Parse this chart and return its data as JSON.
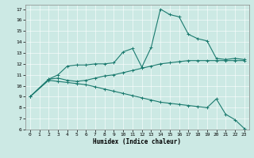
{
  "xlabel": "Humidex (Indice chaleur)",
  "bg_color": "#cce9e4",
  "line_color": "#1a7a6e",
  "xlim": [
    -0.5,
    23.5
  ],
  "ylim": [
    6,
    17.4
  ],
  "yticks": [
    6,
    7,
    8,
    9,
    10,
    11,
    12,
    13,
    14,
    15,
    16,
    17
  ],
  "xticks": [
    0,
    1,
    2,
    3,
    4,
    5,
    6,
    7,
    8,
    9,
    10,
    11,
    12,
    13,
    14,
    15,
    16,
    17,
    18,
    19,
    20,
    21,
    22,
    23
  ],
  "series": [
    {
      "x": [
        0,
        2,
        3,
        4,
        5,
        6,
        7,
        8,
        9,
        10,
        11,
        12,
        13,
        14,
        15,
        16,
        17,
        18,
        19,
        20,
        21,
        22,
        23
      ],
      "y": [
        9,
        10.6,
        11.0,
        11.8,
        11.9,
        11.9,
        12.0,
        12.0,
        12.1,
        13.1,
        13.4,
        11.7,
        13.5,
        17.0,
        16.5,
        16.3,
        14.7,
        14.3,
        14.1,
        12.5,
        12.4,
        12.5,
        12.4
      ]
    },
    {
      "x": [
        0,
        2,
        3,
        4,
        5,
        6,
        7,
        8,
        9,
        10,
        11,
        12,
        13,
        14,
        15,
        16,
        17,
        18,
        19,
        20,
        21,
        22,
        23
      ],
      "y": [
        9,
        10.6,
        10.7,
        10.5,
        10.4,
        10.5,
        10.7,
        10.9,
        11.0,
        11.2,
        11.4,
        11.6,
        11.8,
        12.0,
        12.1,
        12.2,
        12.3,
        12.3,
        12.3,
        12.3,
        12.3,
        12.3,
        12.3
      ]
    },
    {
      "x": [
        0,
        2,
        3,
        4,
        5,
        6,
        7,
        8,
        9,
        10,
        11,
        12,
        13,
        14,
        15,
        16,
        17,
        18,
        19,
        20,
        21,
        22,
        23
      ],
      "y": [
        9,
        10.5,
        10.4,
        10.3,
        10.2,
        10.1,
        9.9,
        9.7,
        9.5,
        9.3,
        9.1,
        8.9,
        8.7,
        8.5,
        8.4,
        8.3,
        8.2,
        8.1,
        8.0,
        8.8,
        7.4,
        6.9,
        6.1
      ]
    }
  ]
}
